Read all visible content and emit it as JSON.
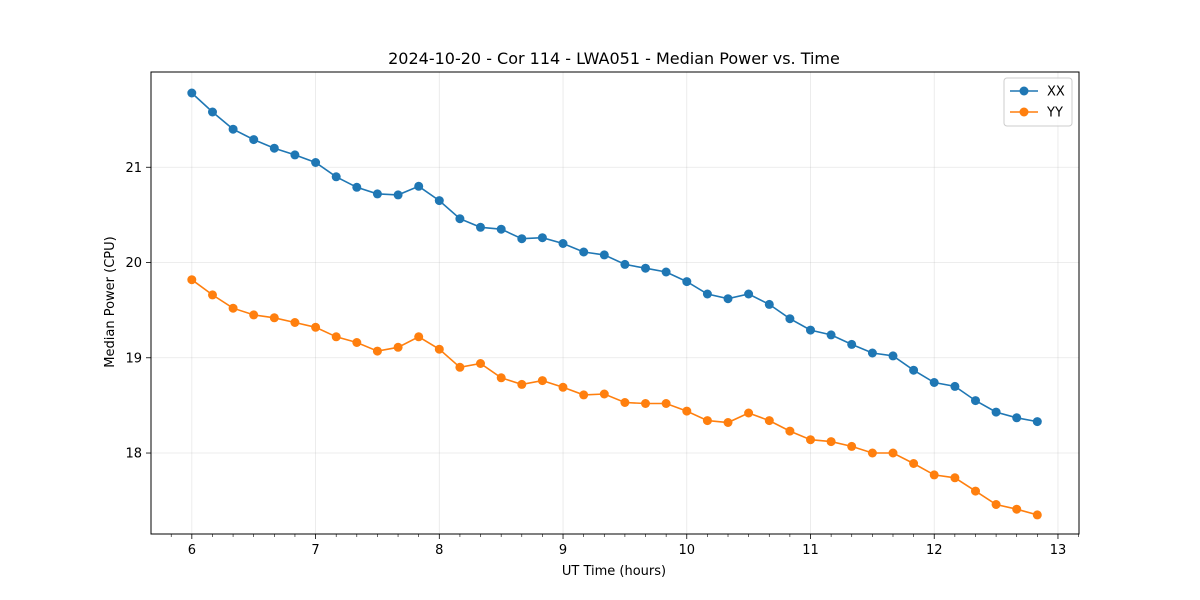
{
  "chart_data": {
    "type": "line",
    "title": "2024-10-20 - Cor 114 - LWA051 - Median Power vs. Time",
    "xlabel": "UT Time (hours)",
    "ylabel": "Median Power (CPU)",
    "xlim": [
      5.67,
      13.17
    ],
    "ylim": [
      17.15,
      22.0
    ],
    "xticks": [
      6,
      7,
      8,
      9,
      10,
      11,
      12,
      13
    ],
    "xtick_labels": [
      "6",
      "7",
      "8",
      "9",
      "10",
      "11",
      "12",
      "13"
    ],
    "yticks": [
      18,
      19,
      20,
      21
    ],
    "ytick_labels": [
      "18",
      "19",
      "20",
      "21"
    ],
    "grid": true,
    "legend_position": "top-right",
    "x": [
      6.0,
      6.1667,
      6.3333,
      6.5,
      6.6667,
      6.8333,
      7.0,
      7.1667,
      7.3333,
      7.5,
      7.6667,
      7.8333,
      8.0,
      8.1667,
      8.3333,
      8.5,
      8.6667,
      8.8333,
      9.0,
      9.1667,
      9.3333,
      9.5,
      9.6667,
      9.8333,
      10.0,
      10.1667,
      10.3333,
      10.5,
      10.6667,
      10.8333,
      11.0,
      11.1667,
      11.3333,
      11.5,
      11.6667,
      11.8333,
      12.0,
      12.1667,
      12.3333,
      12.5,
      12.6667,
      12.8333
    ],
    "series": [
      {
        "name": "XX",
        "color": "#1f77b4",
        "values": [
          21.78,
          21.58,
          21.4,
          21.29,
          21.2,
          21.13,
          21.05,
          20.9,
          20.79,
          20.72,
          20.71,
          20.8,
          20.65,
          20.46,
          20.37,
          20.35,
          20.25,
          20.26,
          20.2,
          20.11,
          20.08,
          19.98,
          19.94,
          19.9,
          19.8,
          19.67,
          19.62,
          19.67,
          19.56,
          19.41,
          19.29,
          19.24,
          19.14,
          19.05,
          19.02,
          18.87,
          18.74,
          18.7,
          18.55,
          18.43,
          18.37,
          18.33
        ]
      },
      {
        "name": "YY",
        "color": "#ff7f0e",
        "values": [
          19.82,
          19.66,
          19.52,
          19.45,
          19.42,
          19.37,
          19.32,
          19.22,
          19.16,
          19.07,
          19.11,
          19.22,
          19.09,
          18.9,
          18.94,
          18.79,
          18.72,
          18.76,
          18.69,
          18.61,
          18.62,
          18.53,
          18.52,
          18.52,
          18.44,
          18.34,
          18.32,
          18.42,
          18.34,
          18.23,
          18.14,
          18.12,
          18.07,
          18.0,
          18.0,
          17.89,
          17.77,
          17.74,
          17.6,
          17.46,
          17.41,
          17.35
        ]
      }
    ]
  }
}
